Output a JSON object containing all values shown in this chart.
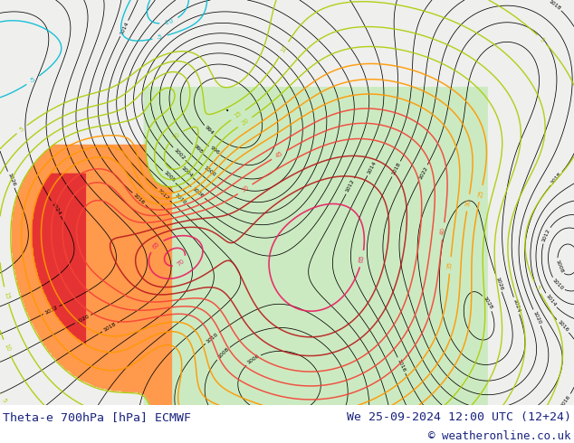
{
  "title_left": "Theta-e 700hPa [hPa] ECMWF",
  "title_right": "We 25-09-2024 12:00 UTC (12+24)",
  "copyright": "© weatheronline.co.uk",
  "bg_color": "#ffffff",
  "text_color": "#1a237e",
  "fig_width": 6.34,
  "fig_height": 4.9,
  "font_size_bottom": 9.5,
  "map_area_color": "#f0f0e8",
  "land_color": "#c8e6c8",
  "sea_color": "#f5f5f0",
  "contour_pressure_color": "#000000",
  "contour_theta_colors": {
    "cyan": "#00bcd4",
    "yellow": "#ffeb3b",
    "orange": "#ff9800",
    "red": "#f44336",
    "dark_red": "#b71c1c",
    "pink": "#e91e63",
    "magenta": "#e040fb"
  }
}
